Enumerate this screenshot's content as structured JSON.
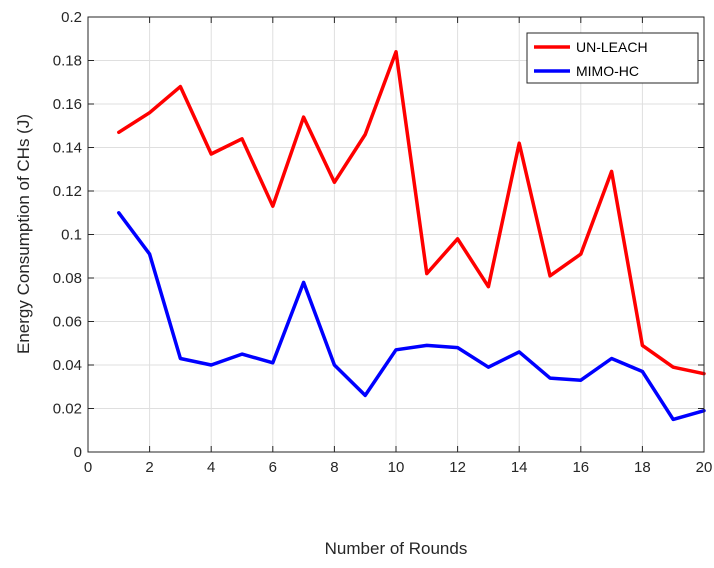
{
  "chart_data": {
    "type": "line",
    "title": "",
    "xlabel": "Number of Rounds",
    "ylabel": "Energy Consumption of CHs (J)",
    "xlim": [
      0,
      20
    ],
    "ylim": [
      0,
      0.2
    ],
    "xticks": [
      0,
      2,
      4,
      6,
      8,
      10,
      12,
      14,
      16,
      18,
      20
    ],
    "yticks": [
      0,
      0.02,
      0.04,
      0.06,
      0.08,
      0.1,
      0.12,
      0.14,
      0.16,
      0.18,
      0.2
    ],
    "xtick_labels": [
      "0",
      "2",
      "4",
      "6",
      "8",
      "10",
      "12",
      "14",
      "16",
      "18",
      "20"
    ],
    "ytick_labels": [
      "0",
      "0.02",
      "0.04",
      "0.06",
      "0.08",
      "0.1",
      "0.12",
      "0.14",
      "0.16",
      "0.18",
      "0.2"
    ],
    "grid": true,
    "legend_position": "top-right",
    "x": [
      1,
      2,
      3,
      4,
      5,
      6,
      7,
      8,
      9,
      10,
      11,
      12,
      13,
      14,
      15,
      16,
      17,
      18,
      19,
      20
    ],
    "series": [
      {
        "name": "UN-LEACH",
        "color": "#ff0000",
        "values": [
          0.147,
          0.156,
          0.168,
          0.137,
          0.144,
          0.113,
          0.154,
          0.124,
          0.146,
          0.184,
          0.082,
          0.098,
          0.076,
          0.142,
          0.081,
          0.091,
          0.129,
          0.049,
          0.039,
          0.036
        ]
      },
      {
        "name": "MIMO-HC",
        "color": "#0000ff",
        "values": [
          0.11,
          0.091,
          0.043,
          0.04,
          0.045,
          0.041,
          0.078,
          0.04,
          0.026,
          0.047,
          0.049,
          0.048,
          0.039,
          0.046,
          0.034,
          0.033,
          0.043,
          0.037,
          0.015,
          0.019
        ]
      }
    ]
  }
}
